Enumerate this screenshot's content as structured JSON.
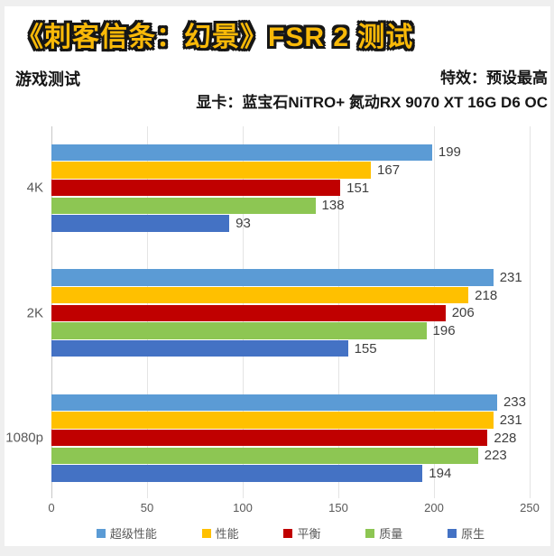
{
  "header": {
    "title": "《刺客信条：幻景》FSR 2 测试",
    "title_color": "#f9b908",
    "title_outline_color": "#161616",
    "benchmark_label": "游戏测试",
    "effects": "特效：预设最高",
    "gpu": "显卡：蓝宝石NiTRO+ 氮动RX 9070 XT 16G D6 OC"
  },
  "chart_data": {
    "type": "bar",
    "orientation": "horizontal",
    "title": "《刺客信条：幻景》FSR 2 测试",
    "categories": [
      "4K",
      "2K",
      "1080p"
    ],
    "series": [
      {
        "name": "超级性能",
        "color": "#5B9BD5",
        "values": [
          199,
          231,
          233
        ]
      },
      {
        "name": "性能",
        "color": "#FFC000",
        "values": [
          167,
          218,
          231
        ]
      },
      {
        "name": "平衡",
        "color": "#C00000",
        "values": [
          151,
          206,
          228
        ]
      },
      {
        "name": "质量",
        "color": "#8DC653",
        "values": [
          138,
          196,
          223
        ]
      },
      {
        "name": "原生",
        "color": "#4472C4",
        "values": [
          93,
          155,
          194
        ]
      }
    ],
    "xlim": [
      0,
      250
    ],
    "x_ticks": [
      0,
      50,
      100,
      150,
      200,
      250
    ],
    "grid": true,
    "legend_position": "bottom",
    "value_labels": true
  }
}
